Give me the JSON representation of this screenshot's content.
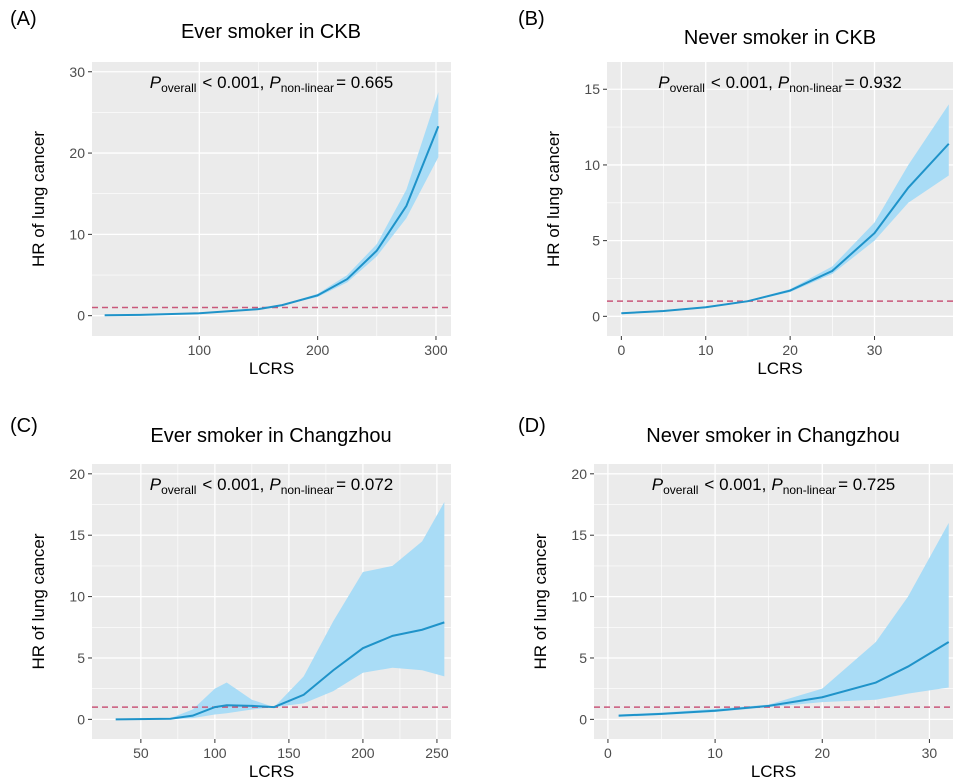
{
  "chart_data": [
    {
      "type": "line",
      "panel_label": "(A)",
      "title": "Ever smoker in CKB",
      "annotation": {
        "p1": "P",
        "sub1": "overall",
        "text1": "< 0.001,",
        "p2": "P",
        "sub2": "non-linear",
        "text2": "= 0.665"
      },
      "xlabel": "LCRS",
      "ylabel": "HR of lung cancer",
      "x": [
        20,
        50,
        100,
        150,
        170,
        200,
        225,
        250,
        275,
        302
      ],
      "values": [
        0.05,
        0.1,
        0.3,
        0.8,
        1.3,
        2.5,
        4.5,
        8,
        13.5,
        23.3
      ],
      "ci_upper": [
        0.1,
        0.15,
        0.35,
        0.85,
        1.35,
        2.7,
        5,
        8.8,
        15.5,
        27.5
      ],
      "ci_lower": [
        0.02,
        0.06,
        0.25,
        0.75,
        1.25,
        2.3,
        4.1,
        7.3,
        12,
        19.5
      ],
      "reference_line": 1,
      "color": "#1f93c9",
      "band_color": "#a9dcf6",
      "reference_color": "#c9577a",
      "xlim": [
        9.3,
        312.7
      ],
      "xticks": [
        100,
        200,
        300
      ],
      "ylim": [
        -2.5,
        31.2
      ],
      "yticks": [
        0,
        10,
        20,
        30
      ],
      "grid": true
    },
    {
      "type": "line",
      "panel_label": "(B)",
      "title": "Never smoker in CKB",
      "annotation": {
        "p1": "P",
        "sub1": "overall",
        "text1": "< 0.001,",
        "p2": "P",
        "sub2": "non-linear",
        "text2": "= 0.932"
      },
      "xlabel": "LCRS",
      "ylabel": "HR of lung cancer",
      "x": [
        0,
        5,
        10,
        15,
        20,
        25,
        30,
        34,
        38.8
      ],
      "values": [
        0.2,
        0.35,
        0.6,
        1.0,
        1.7,
        3.0,
        5.5,
        8.5,
        11.4
      ],
      "ci_upper": [
        0.25,
        0.4,
        0.65,
        1.05,
        1.8,
        3.3,
        6.2,
        10,
        14
      ],
      "ci_lower": [
        0.15,
        0.3,
        0.55,
        0.95,
        1.6,
        2.8,
        5,
        7.5,
        9.3
      ],
      "reference_line": 1,
      "color": "#1f93c9",
      "band_color": "#a9dcf6",
      "reference_color": "#c9577a",
      "xlim": [
        -1.7,
        39.3
      ],
      "xticks": [
        0,
        10,
        20,
        30
      ],
      "ylim": [
        -1.3,
        16.8
      ],
      "yticks": [
        0,
        5,
        10,
        15
      ],
      "grid": true
    },
    {
      "type": "line",
      "panel_label": "(C)",
      "title": "Ever smoker in Changzhou",
      "annotation": {
        "p1": "P",
        "sub1": "overall",
        "text1": "< 0.001,",
        "p2": "P",
        "sub2": "non-linear",
        "text2": "= 0.072"
      },
      "xlabel": "LCRS",
      "ylabel": "HR of lung cancer",
      "x": [
        33,
        70,
        85,
        100,
        108,
        125,
        140,
        160,
        180,
        200,
        220,
        240,
        255
      ],
      "values": [
        0,
        0.05,
        0.3,
        1.0,
        1.15,
        1.1,
        1.0,
        2,
        4,
        5.8,
        6.8,
        7.3,
        7.9
      ],
      "ci_upper": [
        0.05,
        0.1,
        0.8,
        2.5,
        3.0,
        1.6,
        1.0,
        3.5,
        8,
        12,
        12.5,
        14.5,
        17.7
      ],
      "ci_lower": [
        0,
        0.02,
        0.1,
        0.4,
        0.5,
        0.8,
        1.0,
        1.3,
        2.3,
        3.8,
        4.2,
        4.0,
        3.5
      ],
      "reference_line": 1,
      "color": "#1f93c9",
      "band_color": "#a9dcf6",
      "reference_color": "#c9577a",
      "xlim": [
        17,
        259.5
      ],
      "xticks": [
        50,
        100,
        150,
        200,
        250
      ],
      "ylim": [
        -1.6,
        20.8
      ],
      "yticks": [
        0,
        5,
        10,
        15,
        20
      ],
      "grid": true
    },
    {
      "type": "line",
      "panel_label": "(D)",
      "title": "Never smoker in Changzhou",
      "annotation": {
        "p1": "P",
        "sub1": "overall",
        "text1": "< 0.001,",
        "p2": "P",
        "sub2": "non-linear",
        "text2": "= 0.725"
      },
      "xlabel": "LCRS",
      "ylabel": "HR of lung cancer",
      "x": [
        1,
        5,
        10,
        15,
        20,
        25,
        28,
        31.8
      ],
      "values": [
        0.3,
        0.45,
        0.7,
        1.1,
        1.8,
        3.0,
        4.3,
        6.3
      ],
      "ci_upper": [
        0.4,
        0.55,
        0.85,
        1.2,
        2.5,
        6.3,
        10,
        16
      ],
      "ci_lower": [
        0.2,
        0.35,
        0.6,
        1.0,
        1.4,
        1.6,
        2.1,
        2.6
      ],
      "reference_line": 1,
      "color": "#1f93c9",
      "band_color": "#a9dcf6",
      "reference_color": "#c9577a",
      "xlim": [
        -1.3,
        32.2
      ],
      "xticks": [
        0,
        10,
        20,
        30
      ],
      "ylim": [
        -1.6,
        20.8
      ],
      "yticks": [
        0,
        5,
        10,
        15,
        20
      ],
      "grid": true
    }
  ]
}
